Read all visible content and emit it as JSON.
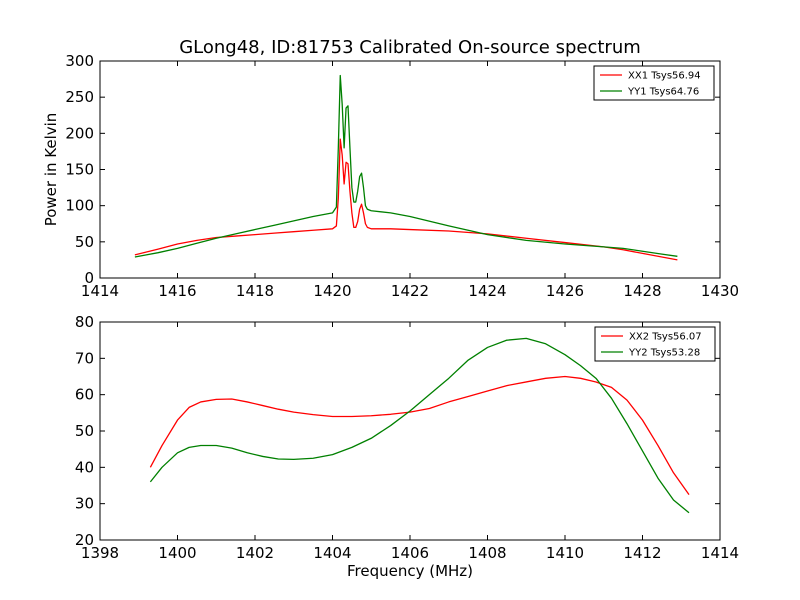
{
  "chart_data": [
    {
      "type": "line",
      "title": "GLong48, ID:81753 Calibrated On-source spectrum",
      "xlabel": "",
      "ylabel": "Power in Kelvin",
      "xlim": [
        1414,
        1430
      ],
      "ylim": [
        0,
        300
      ],
      "xticks": [
        "1414",
        "1416",
        "1418",
        "1420",
        "1422",
        "1424",
        "1426",
        "1428",
        "1430"
      ],
      "yticks": [
        "0",
        "50",
        "100",
        "150",
        "200",
        "250",
        "300"
      ],
      "legend_position": "top-right",
      "series": [
        {
          "name": "XX1 Tsys56.94",
          "color": "#ff0000",
          "x": [
            1414.9,
            1415.5,
            1416,
            1416.5,
            1417,
            1417.5,
            1418,
            1418.5,
            1419,
            1419.5,
            1420,
            1420.1,
            1420.15,
            1420.2,
            1420.25,
            1420.3,
            1420.35,
            1420.4,
            1420.45,
            1420.5,
            1420.55,
            1420.6,
            1420.65,
            1420.7,
            1420.75,
            1420.8,
            1420.85,
            1420.9,
            1421,
            1421.5,
            1422,
            1423,
            1424,
            1425,
            1426,
            1427,
            1427.5,
            1428,
            1428.5,
            1428.9
          ],
          "values": [
            32,
            40,
            47,
            52,
            56,
            58,
            60,
            62,
            64,
            66,
            68,
            72,
            110,
            192,
            170,
            130,
            160,
            158,
            120,
            90,
            70,
            70,
            78,
            95,
            102,
            90,
            75,
            70,
            68,
            68,
            67,
            65,
            61,
            55,
            49,
            43,
            39,
            34,
            29,
            25
          ]
        },
        {
          "name": "YY1 Tsys64.76",
          "color": "#008000",
          "x": [
            1414.9,
            1415.5,
            1416,
            1416.5,
            1417,
            1417.5,
            1418,
            1418.5,
            1419,
            1419.5,
            1420,
            1420.1,
            1420.15,
            1420.2,
            1420.25,
            1420.3,
            1420.35,
            1420.4,
            1420.45,
            1420.5,
            1420.55,
            1420.6,
            1420.65,
            1420.7,
            1420.75,
            1420.8,
            1420.85,
            1420.9,
            1421,
            1421.5,
            1422,
            1423,
            1424,
            1425,
            1426,
            1427,
            1427.5,
            1428,
            1428.5,
            1428.9
          ],
          "values": [
            29,
            35,
            41,
            48,
            55,
            61,
            67,
            73,
            79,
            85,
            90,
            98,
            180,
            280,
            240,
            180,
            235,
            238,
            180,
            125,
            105,
            105,
            120,
            140,
            145,
            125,
            100,
            95,
            93,
            90,
            85,
            72,
            60,
            52,
            47,
            43,
            41,
            37,
            33,
            30
          ]
        }
      ]
    },
    {
      "type": "line",
      "title": "",
      "xlabel": "Frequency (MHz)",
      "ylabel": "",
      "xlim": [
        1398,
        1414
      ],
      "ylim": [
        20,
        80
      ],
      "xticks": [
        "1398",
        "1400",
        "1402",
        "1404",
        "1406",
        "1408",
        "1410",
        "1412",
        "1414"
      ],
      "yticks": [
        "20",
        "30",
        "40",
        "50",
        "60",
        "70",
        "80"
      ],
      "legend_position": "top-right",
      "series": [
        {
          "name": "XX2 Tsys56.07",
          "color": "#ff0000",
          "x": [
            1399.3,
            1399.6,
            1400,
            1400.3,
            1400.6,
            1401,
            1401.4,
            1401.8,
            1402.2,
            1402.6,
            1403,
            1403.5,
            1404,
            1404.5,
            1405,
            1405.5,
            1406,
            1406.5,
            1407,
            1407.5,
            1408,
            1408.5,
            1409,
            1409.5,
            1410,
            1410.4,
            1410.8,
            1411.2,
            1411.6,
            1412,
            1412.4,
            1412.8,
            1413.2
          ],
          "values": [
            40,
            46,
            53,
            56.5,
            58,
            58.7,
            58.8,
            58,
            57,
            56,
            55.2,
            54.5,
            54,
            54,
            54.2,
            54.6,
            55.2,
            56.2,
            58,
            59.5,
            61,
            62.5,
            63.5,
            64.5,
            65,
            64.5,
            63.5,
            62,
            58.5,
            53,
            46,
            38.5,
            32.5
          ]
        },
        {
          "name": "YY2 Tsys53.28",
          "color": "#008000",
          "x": [
            1399.3,
            1399.6,
            1400,
            1400.3,
            1400.6,
            1401,
            1401.4,
            1401.8,
            1402.2,
            1402.6,
            1403,
            1403.5,
            1404,
            1404.5,
            1405,
            1405.5,
            1406,
            1406.5,
            1407,
            1407.5,
            1408,
            1408.5,
            1409,
            1409.5,
            1410,
            1410.4,
            1410.8,
            1411.2,
            1411.6,
            1412,
            1412.4,
            1412.8,
            1413.2
          ],
          "values": [
            36,
            40,
            44,
            45.5,
            46,
            46,
            45.3,
            44,
            43,
            42.3,
            42.2,
            42.5,
            43.5,
            45.5,
            48,
            51.5,
            55.5,
            60,
            64.5,
            69.5,
            73,
            75,
            75.5,
            74,
            71,
            68,
            64.5,
            59,
            52,
            44.5,
            37,
            31,
            27.5
          ]
        }
      ]
    }
  ]
}
